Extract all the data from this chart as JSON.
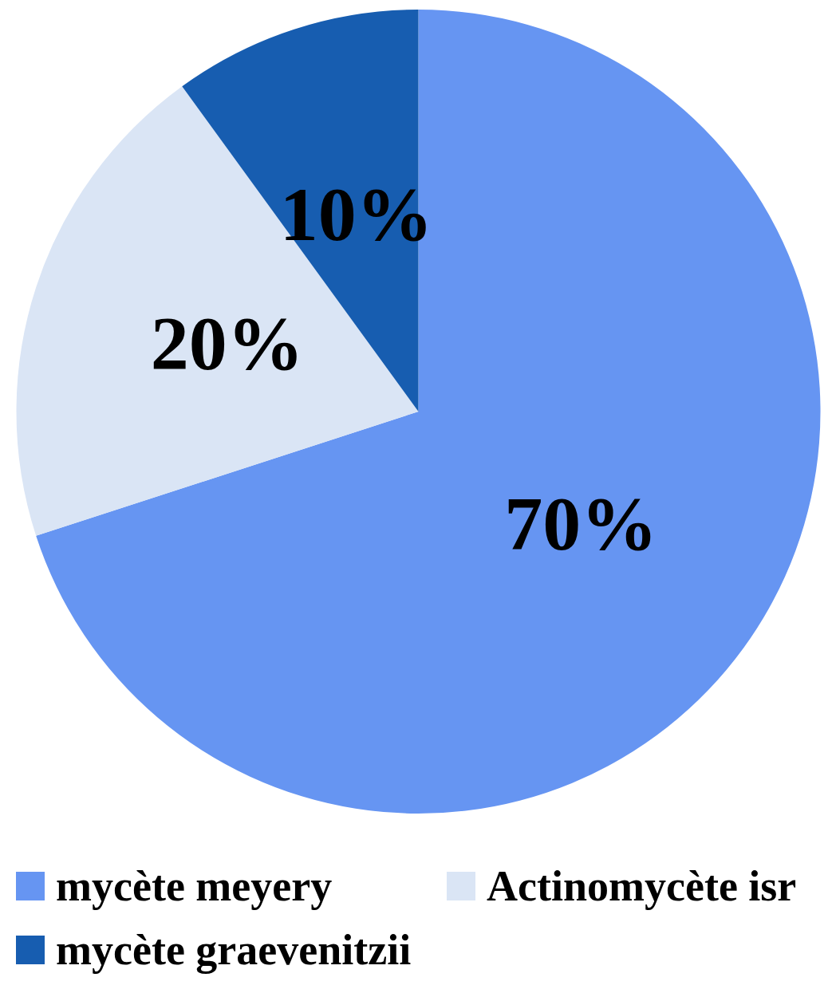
{
  "chart_data": {
    "type": "pie",
    "categories": [
      "mycète meyery",
      "Actinomycète isr",
      "mycète graevenitzii"
    ],
    "values": [
      70,
      20,
      10
    ],
    "colors": [
      "#6695f2",
      "#dae5f5",
      "#175db0"
    ],
    "value_labels": [
      "70%",
      "20%",
      "10%"
    ],
    "legend": "bottom"
  }
}
